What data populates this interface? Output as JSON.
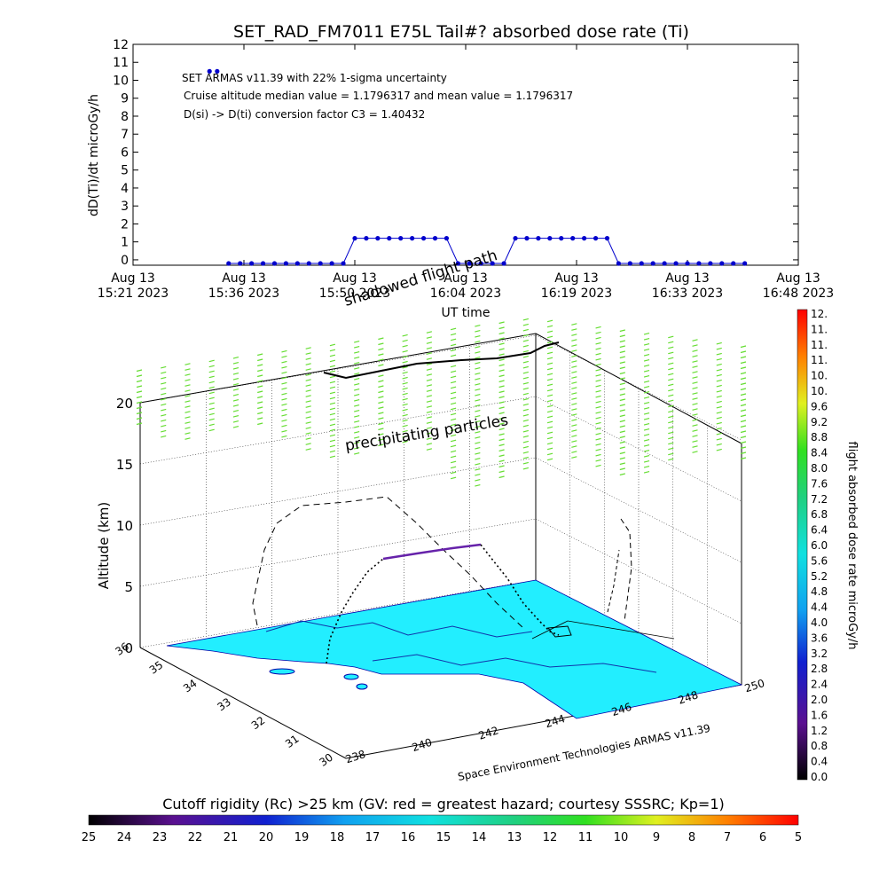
{
  "title": "SET_RAD_FM7011  E75L Tail#? absorbed dose rate (Ti)",
  "top_chart": {
    "ylabel": "dD(Ti)/dt microGy/h",
    "xlabel": "UT time",
    "y_ticks": [
      "0",
      "1",
      "2",
      "3",
      "4",
      "5",
      "6",
      "7",
      "8",
      "9",
      "10",
      "11",
      "12"
    ],
    "x_ticks": [
      {
        "line1": "Aug 13",
        "line2": "15:21 2023"
      },
      {
        "line1": "Aug 13",
        "line2": "15:36 2023"
      },
      {
        "line1": "Aug 13",
        "line2": "15:50 2023"
      },
      {
        "line1": "Aug 13",
        "line2": "16:04 2023"
      },
      {
        "line1": "Aug 13",
        "line2": "16:19 2023"
      },
      {
        "line1": "Aug 13",
        "line2": "16:33 2023"
      },
      {
        "line1": "Aug 13",
        "line2": "16:48 2023"
      }
    ],
    "annotations": [
      "SET ARMAS v11.39 with 22% 1-sigma uncertainty",
      "Cruise altitude median value = 1.1796317 and mean value = 1.1796317",
      "D(si) -> D(ti) conversion factor C3 = 1.40432"
    ]
  },
  "scene": {
    "shadowed_label": "shadowed flight path",
    "precip_label": "precipitating particles",
    "alt_label": "Altitude (km)",
    "alt_ticks": [
      "0",
      "5",
      "10",
      "15",
      "20"
    ],
    "lat_ticks": [
      "30",
      "31",
      "32",
      "33",
      "34",
      "35",
      "36"
    ],
    "lon_ticks": [
      "238",
      "240",
      "242",
      "244",
      "246",
      "248",
      "250"
    ],
    "credit": "Space Environment Technologies ARMAS v11.39"
  },
  "right_colorbar": {
    "label": "flight absorbed dose rate microGy/h",
    "ticks": [
      "0.0",
      "0.4",
      "0.8",
      "1.2",
      "1.6",
      "2.0",
      "2.4",
      "2.8",
      "3.2",
      "3.6",
      "4.0",
      "4.4",
      "4.8",
      "5.2",
      "5.6",
      "6.0",
      "6.4",
      "6.8",
      "7.2",
      "7.6",
      "8.0",
      "8.4",
      "8.8",
      "9.2",
      "9.6",
      "10.",
      "10.",
      "11.",
      "11.",
      "11.",
      "12."
    ]
  },
  "bottom_colorbar": {
    "label": "Cutoff rigidity (Rc) >25 km (GV: red = greatest hazard; courtesy SSSRC; Kp=1)",
    "ticks": [
      "25",
      "24",
      "23",
      "22",
      "21",
      "20",
      "19",
      "18",
      "17",
      "16",
      "15",
      "14",
      "13",
      "12",
      "11",
      "10",
      "9",
      "8",
      "7",
      "6",
      "5"
    ]
  },
  "colors": {
    "series": "#0000cc",
    "land": "#22eeff",
    "precip": "#66dd33",
    "path": "#000000",
    "path_high": "#6622aa"
  },
  "chart_data": [
    {
      "type": "line",
      "title": "SET_RAD_FM7011  E75L Tail#? absorbed dose rate (Ti)",
      "xlabel": "UT time",
      "ylabel": "dD(Ti)/dt microGy/h",
      "x_unit": "minutes after 15:21 UT, Aug 13 2023",
      "xlim": [
        0,
        87
      ],
      "ylim": [
        -0.3,
        12
      ],
      "grid": false,
      "series": [
        {
          "values_x": [
            10,
            11,
            12.5,
            14,
            15.5,
            17,
            18.5,
            20,
            21.5,
            23,
            24.5,
            26,
            27.5,
            29,
            30.5,
            32,
            33.5,
            35,
            36.5,
            38,
            39.5,
            41,
            42.5,
            44,
            45.5,
            47,
            48.5,
            50,
            51.5,
            53,
            54.5,
            56,
            57.5,
            59,
            60.5,
            62,
            63.5,
            65,
            66.5,
            68,
            69.5,
            71,
            72.5,
            74,
            75.5,
            77,
            78.5,
            80
          ],
          "values_y": [
            10.5,
            10.5,
            -0.2,
            -0.2,
            -0.2,
            -0.2,
            -0.2,
            -0.2,
            -0.2,
            -0.2,
            -0.2,
            -0.2,
            -0.2,
            1.2,
            1.2,
            1.2,
            1.2,
            1.2,
            1.2,
            1.2,
            1.2,
            1.2,
            -0.2,
            -0.2,
            -0.2,
            -0.2,
            -0.2,
            1.2,
            1.2,
            1.2,
            1.2,
            1.2,
            1.2,
            1.2,
            1.2,
            1.2,
            -0.2,
            -0.2,
            -0.2,
            -0.2,
            -0.2,
            -0.2,
            -0.2,
            -0.2,
            -0.2,
            -0.2,
            -0.2,
            -0.2
          ]
        }
      ]
    },
    {
      "type": "heatmap",
      "xlabel": "",
      "ylabel": "",
      "zlabel": "Altitude (km)",
      "xlim": [
        238,
        250
      ],
      "ylim": [
        30,
        36
      ],
      "zlim": [
        0,
        22
      ]
    }
  ]
}
